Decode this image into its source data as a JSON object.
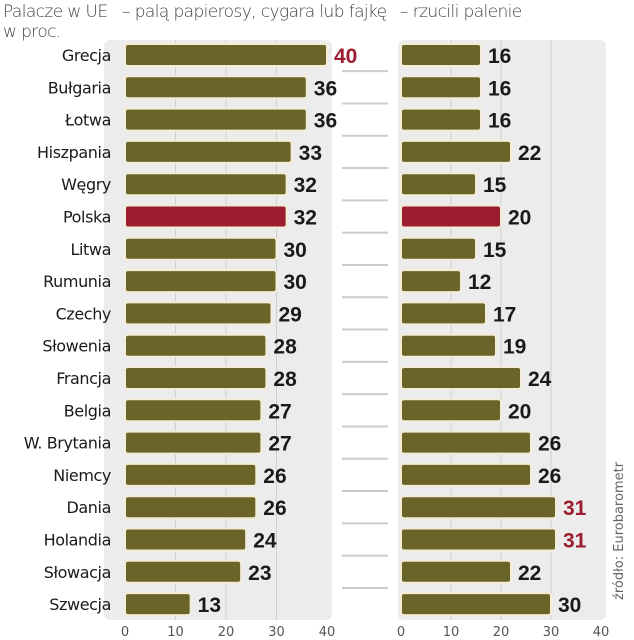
{
  "chart_data": [
    {
      "type": "bar",
      "orientation": "horizontal",
      "title": "– palą papierosy, cygara lub fajkę",
      "categories": [
        "Grecja",
        "Bułgaria",
        "Łotwa",
        "Hiszpania",
        "Węgry",
        "Polska",
        "Litwa",
        "Rumunia",
        "Czechy",
        "Słowenia",
        "Francja",
        "Belgia",
        "W. Brytania",
        "Niemcy",
        "Dania",
        "Holandia",
        "Słowacja",
        "Szwecja"
      ],
      "values": [
        40,
        36,
        36,
        33,
        32,
        32,
        30,
        30,
        29,
        28,
        28,
        27,
        27,
        26,
        26,
        24,
        23,
        13
      ],
      "xlim": [
        0,
        40
      ],
      "xticks": [
        "0",
        "10",
        "20",
        "30",
        "40"
      ],
      "grid": true,
      "highlight_bar": "Polska",
      "highlight_labels": [
        "Grecja"
      ]
    },
    {
      "type": "bar",
      "orientation": "horizontal",
      "title": "– rzucili palenie",
      "categories": [
        "Grecja",
        "Bułgaria",
        "Łotwa",
        "Hiszpania",
        "Węgry",
        "Polska",
        "Litwa",
        "Rumunia",
        "Czechy",
        "Słowenia",
        "Francja",
        "Belgia",
        "W. Brytania",
        "Niemcy",
        "Dania",
        "Holandia",
        "Słowacja",
        "Szwecja"
      ],
      "values": [
        16,
        16,
        16,
        22,
        15,
        20,
        15,
        12,
        17,
        19,
        24,
        20,
        26,
        26,
        31,
        31,
        22,
        30
      ],
      "xlim": [
        0,
        40
      ],
      "xticks": [
        "0",
        "10",
        "20",
        "30",
        "40"
      ],
      "grid": true,
      "highlight_bar": "Polska",
      "highlight_labels": [
        "Dania",
        "Holandia"
      ]
    }
  ],
  "header": {
    "line1": "Palacze w UE",
    "line2": "w proc."
  },
  "source": "źródło: Eurobarometr",
  "colors": {
    "bar": "#6b6428",
    "highlight": "#9c1c30",
    "label": "#1a1a1a",
    "panel": "#ececec"
  }
}
